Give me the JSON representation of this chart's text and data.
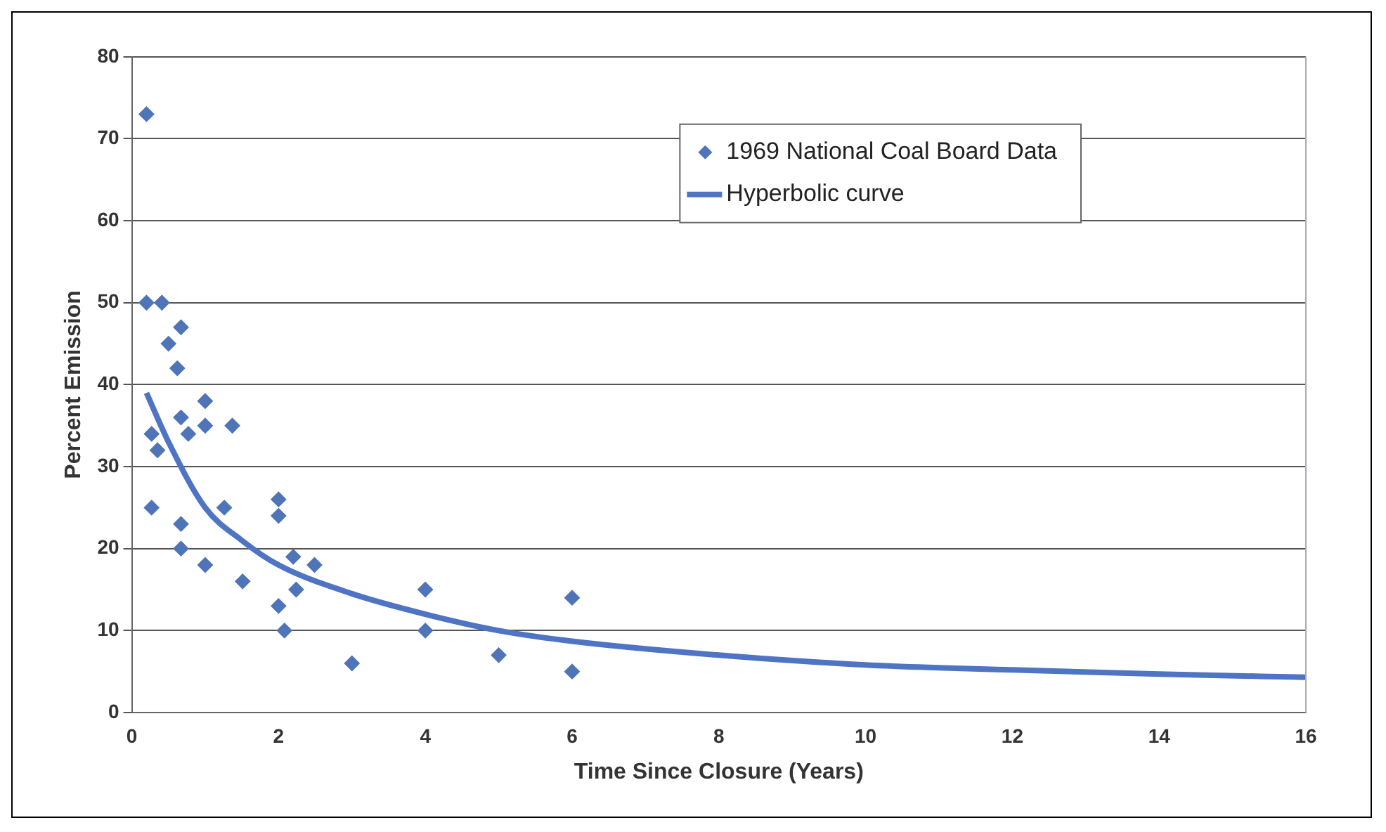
{
  "chart_data": {
    "type": "scatter",
    "xlabel": "Time Since Closure (Years)",
    "ylabel": "Percent Emission",
    "xlim": [
      0,
      16
    ],
    "xticks": [
      0,
      2,
      4,
      6,
      8,
      10,
      12,
      14,
      16
    ],
    "ylim": [
      0,
      80
    ],
    "yticks": [
      0,
      10,
      20,
      30,
      40,
      50,
      60,
      70,
      80
    ],
    "grid": "y",
    "legend": "top right",
    "marker": "diamond",
    "series": [
      {
        "name": "1969 National Coal Board Data",
        "color": "#4f74b8",
        "x": [
          0.2,
          0.2,
          0.41,
          0.5,
          0.67,
          0.62,
          0.27,
          0.35,
          0.27,
          0.67,
          0.77,
          0.67,
          0.67,
          1.0,
          1.0,
          1.0,
          1.37,
          1.26,
          1.51,
          2.0,
          2.0,
          2.0,
          2.08,
          2.2,
          2.24,
          2.49,
          3,
          4,
          4,
          5,
          6,
          6
        ],
        "values": [
          73,
          50,
          50,
          45,
          47,
          42,
          34,
          32,
          25,
          36,
          34,
          23,
          20,
          38,
          35,
          18,
          35,
          25,
          16,
          26,
          24,
          13,
          10,
          19,
          15,
          18,
          6,
          15,
          10,
          7,
          14,
          5
        ]
      },
      {
        "name": "Hyperbolic curve",
        "type": "line",
        "color": "#4f74c4",
        "marker": "none",
        "line_style": "solid",
        "x": [
          0.2,
          0.5,
          1,
          1.5,
          2,
          3,
          4,
          5,
          6,
          8,
          10,
          12,
          14,
          16
        ],
        "values": [
          39,
          33,
          25,
          21,
          18,
          14.5,
          12,
          10,
          8.7,
          7,
          5.8,
          5.2,
          4.7,
          4.3
        ]
      }
    ]
  }
}
